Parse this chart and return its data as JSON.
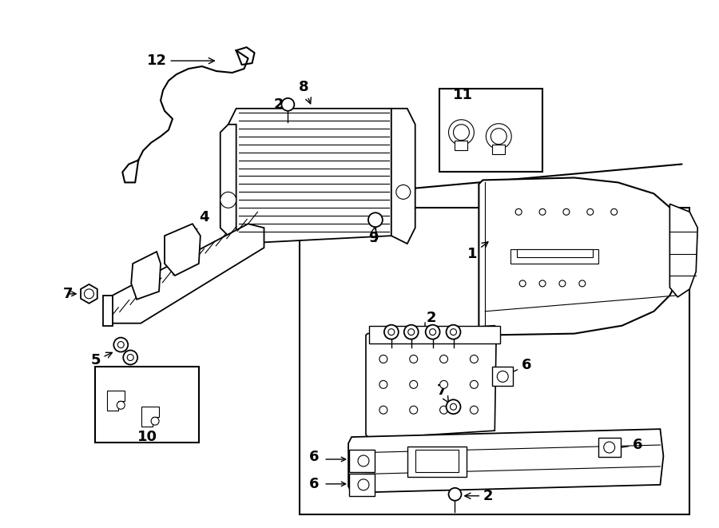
{
  "bg_color": "#ffffff",
  "line_color": "#000000",
  "fig_width": 9.0,
  "fig_height": 6.61,
  "dpi": 100,
  "lw_main": 1.3,
  "lw_thin": 0.8,
  "label_fontsize": 13
}
